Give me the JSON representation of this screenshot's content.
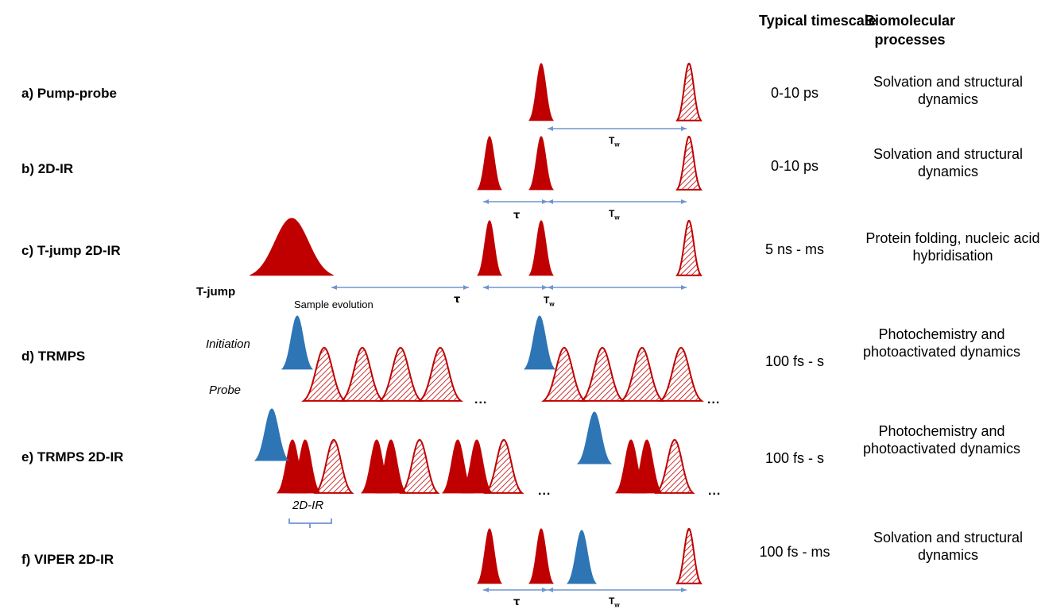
{
  "headers": {
    "timescale": "Typical timescale",
    "processes": "Biomolecular processes"
  },
  "rows": [
    {
      "label": "a) Pump-probe",
      "timescale": "0-10 ps",
      "processes": "Solvation and structural  dynamics"
    },
    {
      "label": "b) 2D-IR",
      "timescale": "0-10 ps",
      "processes": "Solvation and structural  dynamics"
    },
    {
      "label": "c) T-jump 2D-IR",
      "timescale": "5 ns - ms",
      "processes": "Protein folding, nucleic acid hybridisation"
    },
    {
      "label": "d) TRMPS",
      "timescale": "100 fs - s",
      "processes": "Photochemistry and photoactivated dynamics"
    },
    {
      "label": "e) TRMPS 2D-IR",
      "timescale": "100 fs - s",
      "processes": "Photochemistry and photoactivated dynamics"
    },
    {
      "label": "f) VIPER 2D-IR",
      "timescale": "100 fs - ms",
      "processes": "Solvation and structural  dynamics"
    }
  ],
  "annotations": {
    "tw_T": "T",
    "tw_sub": "w",
    "tau": "τ",
    "tjump": "T-jump",
    "sample_evolution": "Sample evolution",
    "initiation": "Initiation",
    "probe": "Probe",
    "twodir": "2D-IR",
    "ellipsis": "..."
  },
  "colors": {
    "pump_red": "#c00000",
    "initiation_blue": "#2e75b6",
    "arrow_blue": "#6f95cf"
  }
}
